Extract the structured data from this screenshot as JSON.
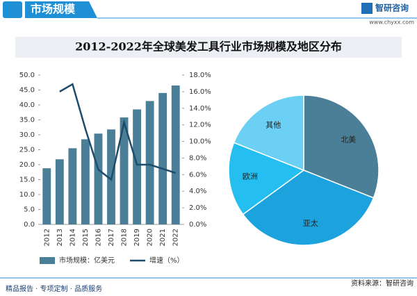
{
  "header": {
    "section": "市场规模",
    "brand": "智研咨询",
    "site": "www.chyxx.com",
    "title": "2012-2022年全球美发工具行业市场规模及地区分布"
  },
  "chart_data": [
    {
      "type": "bar",
      "categories": [
        "2012",
        "2013",
        "2014",
        "2015",
        "2016",
        "2017",
        "2018",
        "2019",
        "2020",
        "2021",
        "2022"
      ],
      "series": [
        {
          "name": "市场规模：亿美元",
          "color": "#4a7f97",
          "values": [
            18.8,
            21.8,
            25.5,
            28.5,
            30.4,
            31.8,
            35.8,
            38.5,
            41.3,
            44.0,
            46.5
          ]
        },
        {
          "name": "增速（%）",
          "color": "#1d4c6c",
          "type": "line",
          "axis": "y2",
          "values": [
            null,
            16.0,
            16.9,
            11.5,
            6.6,
            5.4,
            12.3,
            7.2,
            7.2,
            6.7,
            6.2
          ]
        }
      ],
      "ylim": [
        0,
        50
      ],
      "yticks": [
        {
          "value": 0,
          "label": "0.0"
        },
        {
          "value": 5,
          "label": "5.0"
        },
        {
          "value": 10,
          "label": "10.0"
        },
        {
          "value": 15,
          "label": "15.0"
        },
        {
          "value": 20,
          "label": "20.0"
        },
        {
          "value": 25,
          "label": "25.0"
        },
        {
          "value": 30,
          "label": "30.0"
        },
        {
          "value": 35,
          "label": "35.0"
        },
        {
          "value": 40,
          "label": "40.0"
        },
        {
          "value": 45,
          "label": "45.0"
        },
        {
          "value": 50,
          "label": "50.0"
        }
      ],
      "y2lim": [
        0,
        18
      ],
      "y2ticks": [
        {
          "value": 0,
          "label": "0.0%"
        },
        {
          "value": 2,
          "label": "2.0%"
        },
        {
          "value": 4,
          "label": "4.0%"
        },
        {
          "value": 6,
          "label": "6.0%"
        },
        {
          "value": 8,
          "label": "8.0%"
        },
        {
          "value": 10,
          "label": "10.0%"
        },
        {
          "value": 12,
          "label": "12.0%"
        },
        {
          "value": 14,
          "label": "14.0%"
        },
        {
          "value": 16,
          "label": "16.0%"
        },
        {
          "value": 18,
          "label": "18.0%"
        }
      ]
    },
    {
      "type": "pie",
      "categories": [
        "北美",
        "亚太",
        "欧洲",
        "其他"
      ],
      "values": [
        31,
        34,
        16,
        19
      ],
      "colors": [
        "#4a7f97",
        "#1ca2dd",
        "#24bef0",
        "#6ccff4"
      ]
    }
  ],
  "footer": {
    "slogan": "精品报告 · 专项定制 · 品质服务",
    "source": "资料来源：智研咨询"
  }
}
